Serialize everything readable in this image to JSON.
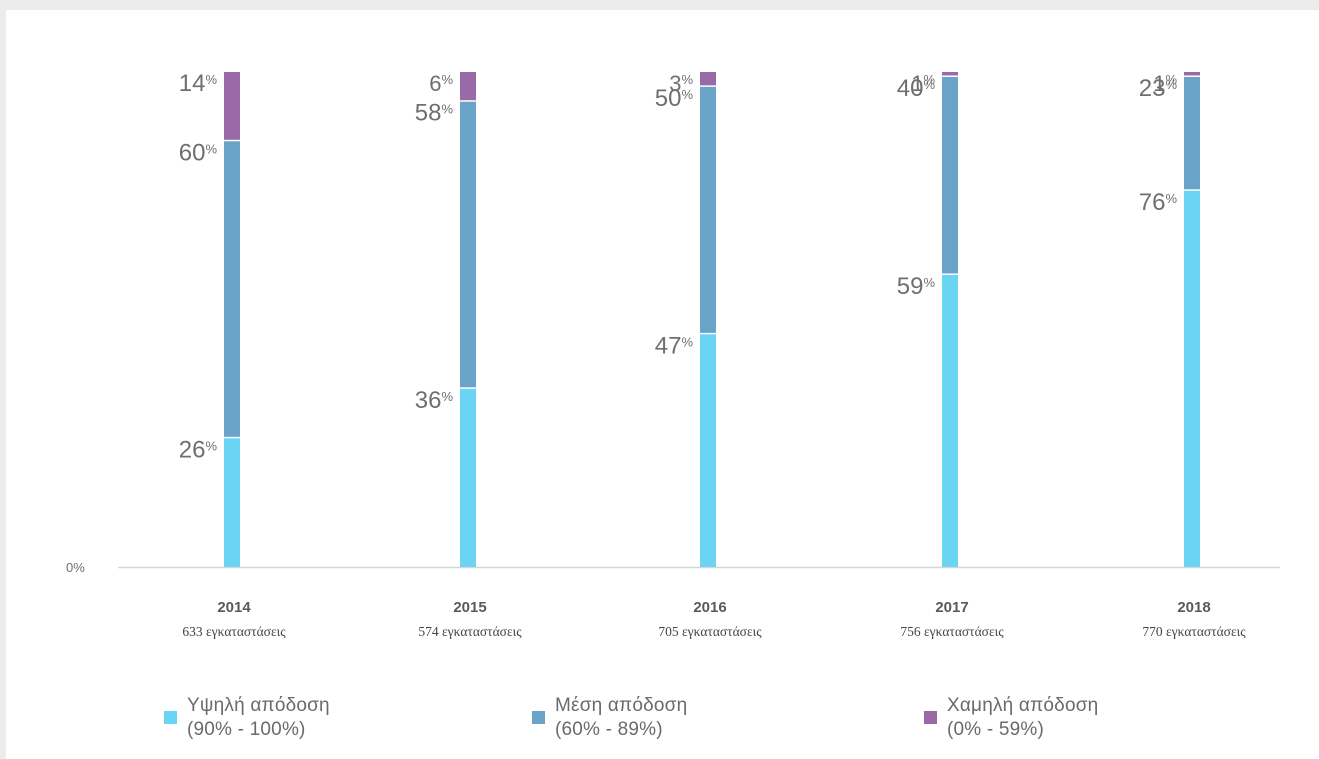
{
  "colors": {
    "high": "#69d4f3",
    "medium": "#6aa3c8",
    "low": "#9a6aa8",
    "axis": "#d6d6d6",
    "label": "#6f6f6f"
  },
  "chart_data": {
    "type": "bar",
    "stacked": true,
    "ylim": [
      0,
      100
    ],
    "y_baseline_label": "0%",
    "categories": [
      "2014",
      "2015",
      "2016",
      "2017",
      "2018"
    ],
    "subcategories": [
      "633 εγκαταστάσεις",
      "574 εγκαταστάσεις",
      "705 εγκαταστάσεις",
      "756 εγκαταστάσεις",
      "770 εγκαταστάσεις"
    ],
    "series": [
      {
        "key": "high",
        "name": "Υψηλή απόδοση",
        "range": "(90% - 100%)",
        "values": [
          26,
          36,
          47,
          59,
          76
        ]
      },
      {
        "key": "medium",
        "name": "Μέση απόδοση",
        "range": "(60% - 89%)",
        "values": [
          60,
          58,
          50,
          40,
          23
        ]
      },
      {
        "key": "low",
        "name": "Χαμηλή απόδοση",
        "range": "(0% - 59%)",
        "values": [
          14,
          6,
          3,
          1,
          1
        ]
      }
    ],
    "legend_position": "bottom",
    "grid": false
  }
}
